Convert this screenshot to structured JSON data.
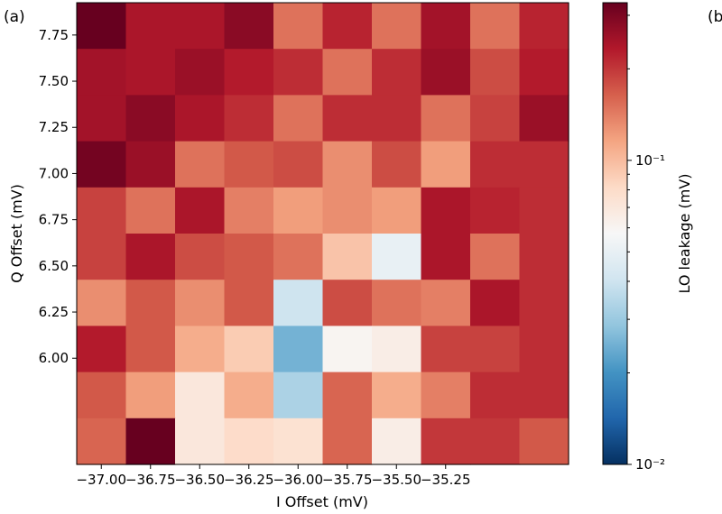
{
  "panel_label": "(a)",
  "next_panel_label": "(b",
  "chart_data": {
    "type": "heatmap",
    "title": "",
    "xlabel": "I Offset (mV)",
    "ylabel": "Q Offset (mV)",
    "colorbar_label": "LO leakage (mV)",
    "colormap": "RdBu_r",
    "color_scale": "log",
    "colorbar_ticks": [
      "10⁻¹",
      "10⁻²"
    ],
    "colorbar_tick_values": [
      0.1,
      0.01
    ],
    "color_range": [
      0.01,
      0.33
    ],
    "x_ticks": [
      "−37.00",
      "−36.75",
      "−36.50",
      "−36.25",
      "−36.00",
      "−35.75",
      "−35.50",
      "−35.25"
    ],
    "x_tick_values": [
      -37.0,
      -36.75,
      -36.5,
      -36.25,
      -36.0,
      -35.75,
      -35.5,
      -35.25
    ],
    "y_ticks": [
      "7.75",
      "7.50",
      "7.25",
      "7.00",
      "6.75",
      "6.50",
      "6.25",
      "6.00"
    ],
    "y_tick_values": [
      7.75,
      7.5,
      7.25,
      7.0,
      6.75,
      6.5,
      6.25,
      6.0
    ],
    "x": [
      -37.0,
      -36.75,
      -36.5,
      -36.25,
      -36.0,
      -35.75,
      -35.5,
      -35.25,
      -35.0,
      -34.75
    ],
    "y": [
      7.8,
      7.55,
      7.3,
      7.05,
      6.8,
      6.55,
      6.3,
      6.05,
      5.8,
      5.55
    ],
    "xlim": [
      -37.125,
      -34.625
    ],
    "ylim": [
      5.425,
      7.925
    ],
    "values": [
      [
        0.33,
        0.24,
        0.24,
        0.28,
        0.15,
        0.22,
        0.15,
        0.25,
        0.15,
        0.22
      ],
      [
        0.25,
        0.24,
        0.26,
        0.23,
        0.21,
        0.15,
        0.21,
        0.26,
        0.18,
        0.23
      ],
      [
        0.25,
        0.28,
        0.24,
        0.21,
        0.15,
        0.21,
        0.21,
        0.15,
        0.19,
        0.26
      ],
      [
        0.31,
        0.26,
        0.15,
        0.17,
        0.18,
        0.13,
        0.18,
        0.12,
        0.21,
        0.21
      ],
      [
        0.19,
        0.15,
        0.24,
        0.14,
        0.12,
        0.13,
        0.12,
        0.24,
        0.22,
        0.21
      ],
      [
        0.19,
        0.24,
        0.18,
        0.17,
        0.15,
        0.095,
        0.05,
        0.24,
        0.15,
        0.21
      ],
      [
        0.13,
        0.17,
        0.13,
        0.17,
        0.04,
        0.18,
        0.15,
        0.14,
        0.24,
        0.21
      ],
      [
        0.23,
        0.17,
        0.11,
        0.09,
        0.025,
        0.06,
        0.065,
        0.19,
        0.19,
        0.21
      ],
      [
        0.17,
        0.12,
        0.07,
        0.11,
        0.033,
        0.16,
        0.11,
        0.14,
        0.21,
        0.21
      ],
      [
        0.16,
        0.33,
        0.07,
        0.08,
        0.075,
        0.16,
        0.065,
        0.2,
        0.2,
        0.17
      ]
    ]
  }
}
